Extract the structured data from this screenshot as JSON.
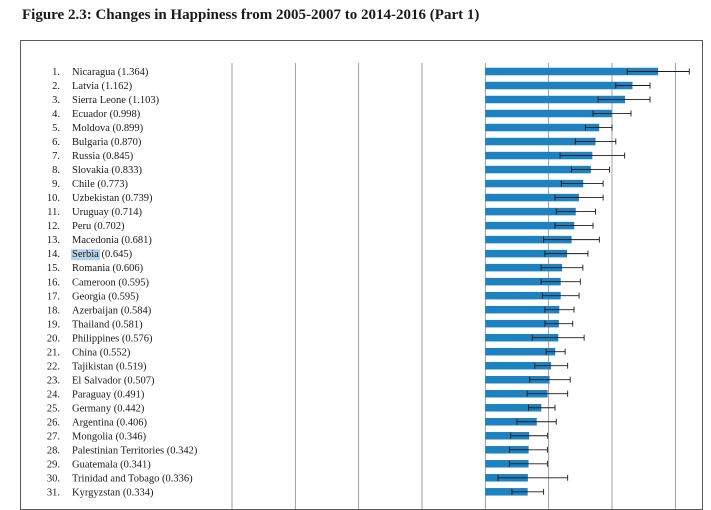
{
  "figure": {
    "title": "Figure 2.3: Changes in Happiness from 2005-2007 to 2014-2016 (Part 1)"
  },
  "highlight": {
    "country": "Serbia",
    "color": "#b7d3ec"
  },
  "colors": {
    "bar": "#1f82c0",
    "grid": "#888888",
    "whisker": "#1a1a1a"
  },
  "chart_data": {
    "type": "bar",
    "orientation": "horizontal",
    "title": "Figure 2.3: Changes in Happiness from 2005-2007 to 2014-2016 (Part 1)",
    "xlim": [
      -2.0,
      1.6
    ],
    "grid": true,
    "entries": [
      {
        "rank": "1.",
        "name": "Nicaragua",
        "value": 1.364,
        "value_label": "(1.364)",
        "ci": [
          1.12,
          1.61
        ]
      },
      {
        "rank": "2.",
        "name": "Latvia",
        "value": 1.162,
        "value_label": "(1.162)",
        "ci": [
          1.03,
          1.3
        ]
      },
      {
        "rank": "3.",
        "name": "Sierra Leone",
        "value": 1.103,
        "value_label": "(1.103)",
        "ci": [
          0.89,
          1.3
        ]
      },
      {
        "rank": "4.",
        "name": "Ecuador",
        "value": 0.998,
        "value_label": "(0.998)",
        "ci": [
          0.85,
          1.15
        ]
      },
      {
        "rank": "5.",
        "name": "Moldova",
        "value": 0.899,
        "value_label": "(0.899)",
        "ci": [
          0.79,
          1.0
        ]
      },
      {
        "rank": "6.",
        "name": "Bulgaria",
        "value": 0.87,
        "value_label": "(0.870)",
        "ci": [
          0.71,
          1.03
        ]
      },
      {
        "rank": "7.",
        "name": "Russia",
        "value": 0.845,
        "value_label": "(0.845)",
        "ci": [
          0.59,
          1.1
        ]
      },
      {
        "rank": "8.",
        "name": "Slovakia",
        "value": 0.833,
        "value_label": "(0.833)",
        "ci": [
          0.68,
          0.98
        ]
      },
      {
        "rank": "9.",
        "name": "Chile",
        "value": 0.773,
        "value_label": "(0.773)",
        "ci": [
          0.6,
          0.93
        ]
      },
      {
        "rank": "10.",
        "name": "Uzbekistan",
        "value": 0.739,
        "value_label": "(0.739)",
        "ci": [
          0.55,
          0.93
        ]
      },
      {
        "rank": "11.",
        "name": "Uruguay",
        "value": 0.714,
        "value_label": "(0.714)",
        "ci": [
          0.56,
          0.87
        ]
      },
      {
        "rank": "12.",
        "name": "Peru",
        "value": 0.702,
        "value_label": "(0.702)",
        "ci": [
          0.55,
          0.85
        ]
      },
      {
        "rank": "13.",
        "name": "Macedonia",
        "value": 0.681,
        "value_label": "(0.681)",
        "ci": [
          0.46,
          0.9
        ]
      },
      {
        "rank": "14.",
        "name": "Serbia",
        "value": 0.645,
        "value_label": "(0.645)",
        "ci": [
          0.47,
          0.81
        ]
      },
      {
        "rank": "15.",
        "name": "Romania",
        "value": 0.606,
        "value_label": "(0.606)",
        "ci": [
          0.44,
          0.77
        ]
      },
      {
        "rank": "16.",
        "name": "Cameroon",
        "value": 0.595,
        "value_label": "(0.595)",
        "ci": [
          0.44,
          0.75
        ]
      },
      {
        "rank": "17.",
        "name": "Georgia",
        "value": 0.595,
        "value_label": "(0.595)",
        "ci": [
          0.45,
          0.74
        ]
      },
      {
        "rank": "18.",
        "name": "Azerbaijan",
        "value": 0.584,
        "value_label": "(0.584)",
        "ci": [
          0.47,
          0.7
        ]
      },
      {
        "rank": "19.",
        "name": "Thailand",
        "value": 0.581,
        "value_label": "(0.581)",
        "ci": [
          0.47,
          0.69
        ]
      },
      {
        "rank": "20.",
        "name": "Philippines",
        "value": 0.576,
        "value_label": "(0.576)",
        "ci": [
          0.37,
          0.78
        ]
      },
      {
        "rank": "21.",
        "name": "China",
        "value": 0.552,
        "value_label": "(0.552)",
        "ci": [
          0.48,
          0.63
        ]
      },
      {
        "rank": "22.",
        "name": "Tajikistan",
        "value": 0.519,
        "value_label": "(0.519)",
        "ci": [
          0.39,
          0.65
        ]
      },
      {
        "rank": "23.",
        "name": "El Salvador",
        "value": 0.507,
        "value_label": "(0.507)",
        "ci": [
          0.35,
          0.67
        ]
      },
      {
        "rank": "24.",
        "name": "Paraguay",
        "value": 0.491,
        "value_label": "(0.491)",
        "ci": [
          0.33,
          0.65
        ]
      },
      {
        "rank": "25.",
        "name": "Germany",
        "value": 0.442,
        "value_label": "(0.442)",
        "ci": [
          0.34,
          0.55
        ]
      },
      {
        "rank": "26.",
        "name": "Argentina",
        "value": 0.406,
        "value_label": "(0.406)",
        "ci": [
          0.25,
          0.56
        ]
      },
      {
        "rank": "27.",
        "name": "Mongolia",
        "value": 0.346,
        "value_label": "(0.346)",
        "ci": [
          0.2,
          0.49
        ]
      },
      {
        "rank": "28.",
        "name": "Palestinian Territories",
        "value": 0.342,
        "value_label": "(0.342)",
        "ci": [
          0.19,
          0.49
        ]
      },
      {
        "rank": "29.",
        "name": "Guatemala",
        "value": 0.341,
        "value_label": "(0.341)",
        "ci": [
          0.19,
          0.49
        ]
      },
      {
        "rank": "30.",
        "name": "Trinidad and Tobago",
        "value": 0.336,
        "value_label": "(0.336)",
        "ci": [
          0.1,
          0.65
        ]
      },
      {
        "rank": "31.",
        "name": "Kyrgyzstan",
        "value": 0.334,
        "value_label": "(0.334)",
        "ci": [
          0.21,
          0.46
        ]
      }
    ]
  }
}
